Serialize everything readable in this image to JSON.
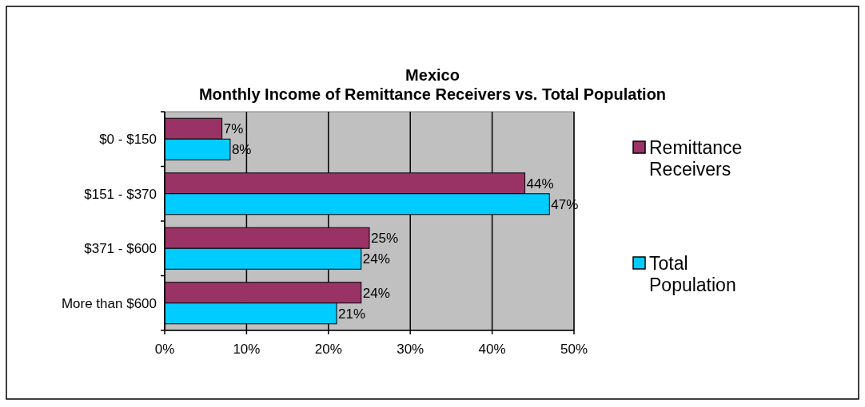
{
  "chart_data": {
    "type": "bar",
    "orientation": "horizontal",
    "title": "Mexico",
    "subtitle": "Monthly Income of Remittance Receivers vs. Total Population",
    "categories": [
      "$0 - $150",
      "$151 - $370",
      "$371 - $600",
      "More than $600"
    ],
    "series": [
      {
        "name": "Remittance Receivers",
        "color": "#993366",
        "values": [
          7,
          44,
          25,
          24
        ],
        "value_labels": [
          "7%",
          "44%",
          "25%",
          "24%"
        ]
      },
      {
        "name": "Total Population",
        "color": "#00ccff",
        "values": [
          8,
          47,
          24,
          21
        ],
        "value_labels": [
          "8%",
          "47%",
          "24%",
          "21%"
        ]
      }
    ],
    "xlim": [
      0,
      50
    ],
    "xticks": [
      {
        "value": 0,
        "label": "0%"
      },
      {
        "value": 10,
        "label": "10%"
      },
      {
        "value": 20,
        "label": "20%"
      },
      {
        "value": 30,
        "label": "30%"
      },
      {
        "value": 40,
        "label": "40%"
      },
      {
        "value": 50,
        "label": "50%"
      }
    ],
    "grid": "x",
    "legend": "right"
  }
}
